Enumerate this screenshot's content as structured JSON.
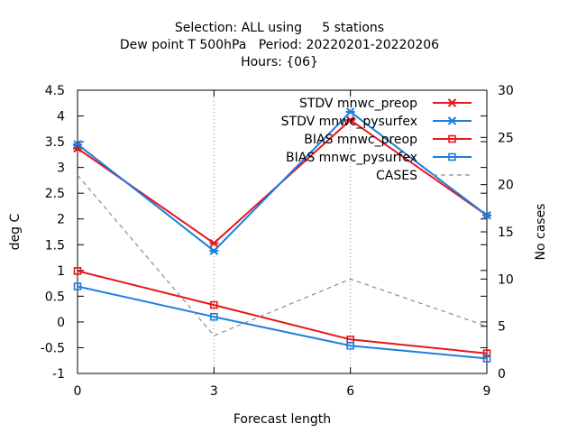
{
  "chart_data": {
    "type": "line",
    "title_lines": [
      "Selection: ALL using     5 stations",
      "Dew point T 500hPa   Period: 20220201-20220206",
      "Hours: {06}"
    ],
    "xlabel": "Forecast length",
    "ylabel": "deg C",
    "y2label": "No cases",
    "x": [
      0,
      3,
      6,
      9
    ],
    "xlim": [
      0,
      9
    ],
    "ylim": [
      -1,
      4.5
    ],
    "y2lim": [
      0,
      30
    ],
    "xticks": [
      "0",
      "3",
      "6",
      "9"
    ],
    "yticks": [
      "-1",
      "-0.5",
      "0",
      "0.5",
      "1",
      "1.5",
      "2",
      "2.5",
      "3",
      "3.5",
      "4",
      "4.5"
    ],
    "y2ticks": [
      "0",
      "5",
      "10",
      "15",
      "20",
      "25",
      "30"
    ],
    "grid": "vertical dotted at x ticks",
    "legend_position": "top-right",
    "series": [
      {
        "name": "STDV mnwc_preop",
        "axis": "y",
        "color": "#e8161a",
        "marker": "star",
        "dash": "solid",
        "values": [
          3.37,
          1.53,
          3.92,
          2.07
        ]
      },
      {
        "name": "STDV mnwc_pysurfex",
        "axis": "y",
        "color": "#1a7ee0",
        "marker": "star",
        "dash": "solid",
        "values": [
          3.45,
          1.38,
          4.08,
          2.07
        ]
      },
      {
        "name": "BIAS mnwc_preop",
        "axis": "y",
        "color": "#e8161a",
        "marker": "square",
        "dash": "solid",
        "values": [
          0.99,
          0.33,
          -0.34,
          -0.61
        ]
      },
      {
        "name": "BIAS mnwc_pysurfex",
        "axis": "y",
        "color": "#1a7ee0",
        "marker": "square",
        "dash": "solid",
        "values": [
          0.69,
          0.1,
          -0.46,
          -0.71
        ]
      },
      {
        "name": "CASES",
        "axis": "y2",
        "color": "#8c8c8c",
        "marker": "none",
        "dash": "dashed",
        "values": [
          21,
          4,
          10,
          5
        ]
      }
    ]
  }
}
